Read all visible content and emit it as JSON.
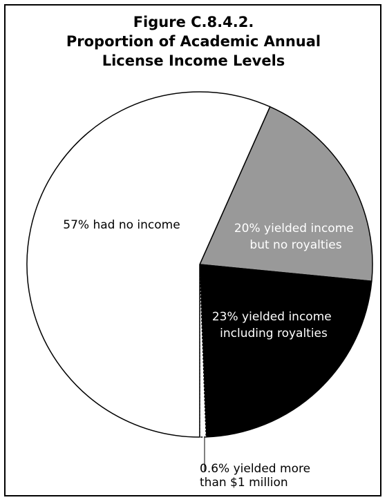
{
  "chart_data": {
    "type": "pie",
    "title_lines": [
      "Figure C.8.4.2.",
      "Proportion of Academic Annual",
      "License Income Levels"
    ],
    "slices": [
      {
        "label_lines": [
          "20% yielded income",
          "but no royalties"
        ],
        "value": 20,
        "color": "#999999",
        "label_color": "#ffffff"
      },
      {
        "label_lines": [
          "23% yielded income",
          "including royalties"
        ],
        "value": 23,
        "color": "#000000",
        "label_color": "#ffffff"
      },
      {
        "label_lines": [
          "0.6% yielded more",
          "than $1 million"
        ],
        "value": 0.6,
        "color": "#ffffff",
        "label_color": "#000000",
        "dashed": true
      },
      {
        "label_lines": [
          "57% had no income"
        ],
        "value": 57,
        "color": "#ffffff",
        "label_color": "#000000"
      }
    ]
  }
}
